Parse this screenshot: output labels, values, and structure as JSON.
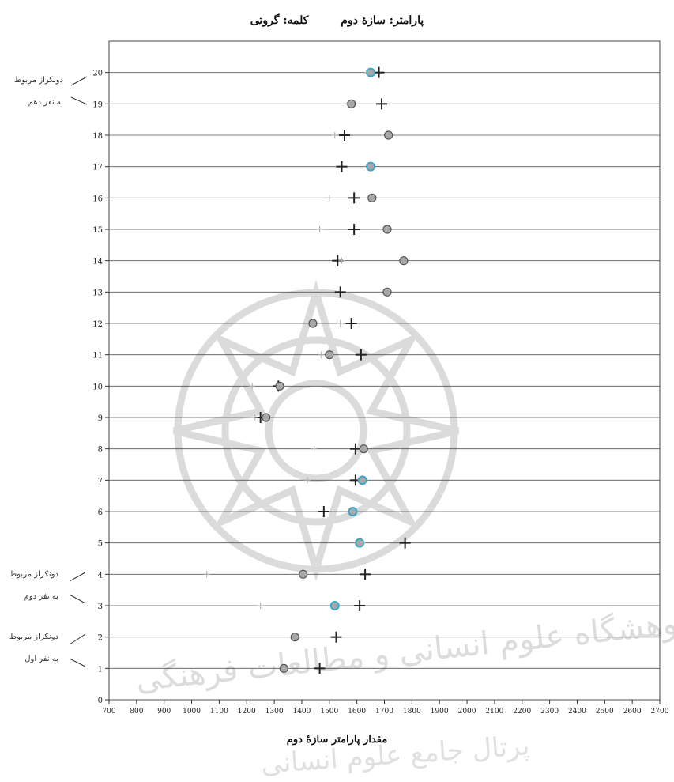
{
  "header": {
    "param_label": "پارامتر: سازهٔ دوم",
    "word_label": "کلمه: گروتی"
  },
  "side_notes": [
    {
      "line1": "دونکراز مربوط",
      "line2": "به نفر دهم"
    },
    {
      "line1": "دونکراز مربوط",
      "line2": "به نفر دوم"
    },
    {
      "line1": "دونکراز مربوط",
      "line2": "به نفر اول"
    }
  ],
  "watermark": {
    "line1": "پژوهشگاه علوم انسانی و مطالعات فرهنگی",
    "line2": "پرتال جامع علوم انسانی"
  },
  "chart_data": {
    "type": "scatter",
    "title": "",
    "xlabel": "مقدار پارامتر سازهٔ دوم",
    "ylabel": "",
    "xlim": [
      700,
      2700
    ],
    "x_ticks": [
      700,
      800,
      900,
      1000,
      1100,
      1200,
      1300,
      1400,
      1500,
      1600,
      1700,
      1800,
      1900,
      2000,
      2100,
      2200,
      2300,
      2400,
      2500,
      2600,
      2700
    ],
    "ylim": [
      0,
      21
    ],
    "y_ticks": [
      0,
      1,
      2,
      3,
      4,
      5,
      6,
      7,
      8,
      9,
      10,
      11,
      12,
      13,
      14,
      15,
      16,
      17,
      18,
      19,
      20
    ],
    "grid": "horizontal",
    "series": [
      {
        "marker": "plus",
        "color": "#222222",
        "values": [
          {
            "y": 20,
            "x": 1680
          },
          {
            "y": 19,
            "x": 1690
          },
          {
            "y": 18,
            "x": 1555
          },
          {
            "y": 17,
            "x": 1545
          },
          {
            "y": 16,
            "x": 1590
          },
          {
            "y": 15,
            "x": 1590
          },
          {
            "y": 14,
            "x": 1530
          },
          {
            "y": 13,
            "x": 1540
          },
          {
            "y": 12,
            "x": 1580
          },
          {
            "y": 11,
            "x": 1615
          },
          {
            "y": 10,
            "x": 1315
          },
          {
            "y": 9,
            "x": 1250
          },
          {
            "y": 8,
            "x": 1595
          },
          {
            "y": 7,
            "x": 1595
          },
          {
            "y": 6,
            "x": 1480
          },
          {
            "y": 5,
            "x": 1775
          },
          {
            "y": 4,
            "x": 1630
          },
          {
            "y": 3,
            "x": 1610
          },
          {
            "y": 2,
            "x": 1525
          },
          {
            "y": 1,
            "x": 1465
          }
        ]
      },
      {
        "marker": "circle",
        "color": "#888888",
        "values": [
          {
            "y": 20,
            "x": 1650
          },
          {
            "y": 19,
            "x": 1580
          },
          {
            "y": 18,
            "x": 1715
          },
          {
            "y": 17,
            "x": 1650
          },
          {
            "y": 16,
            "x": 1655
          },
          {
            "y": 15,
            "x": 1710
          },
          {
            "y": 14,
            "x": 1770
          },
          {
            "y": 13,
            "x": 1710
          },
          {
            "y": 12,
            "x": 1440
          },
          {
            "y": 11,
            "x": 1500
          },
          {
            "y": 10,
            "x": 1320
          },
          {
            "y": 9,
            "x": 1270
          },
          {
            "y": 8,
            "x": 1625
          },
          {
            "y": 7,
            "x": 1620
          },
          {
            "y": 6,
            "x": 1585
          },
          {
            "y": 5,
            "x": 1610
          },
          {
            "y": 4,
            "x": 1405
          },
          {
            "y": 3,
            "x": 1520
          },
          {
            "y": 2,
            "x": 1375
          },
          {
            "y": 1,
            "x": 1335
          }
        ]
      },
      {
        "marker": "small-plus",
        "color": "#aaaaaa",
        "values": [
          {
            "y": 20,
            "x": 1640
          },
          {
            "y": 19,
            "x": 1575
          },
          {
            "y": 18,
            "x": 1520
          },
          {
            "y": 16,
            "x": 1500
          },
          {
            "y": 15,
            "x": 1465
          },
          {
            "y": 14,
            "x": 1545
          },
          {
            "y": 12,
            "x": 1540
          },
          {
            "y": 11,
            "x": 1470
          },
          {
            "y": 10,
            "x": 1220
          },
          {
            "y": 9,
            "x": 1230
          },
          {
            "y": 8,
            "x": 1445
          },
          {
            "y": 7,
            "x": 1420
          },
          {
            "y": 5,
            "x": 1620
          },
          {
            "y": 4,
            "x": 1055
          },
          {
            "y": 3,
            "x": 1250
          }
        ]
      }
    ],
    "highlight_color": "#3aa7c9",
    "highlighted_points": [
      {
        "y": 20,
        "x": 1650
      },
      {
        "y": 17,
        "x": 1650
      },
      {
        "y": 7,
        "x": 1620
      },
      {
        "y": 6,
        "x": 1585
      },
      {
        "y": 5,
        "x": 1610
      },
      {
        "y": 3,
        "x": 1520
      }
    ]
  }
}
